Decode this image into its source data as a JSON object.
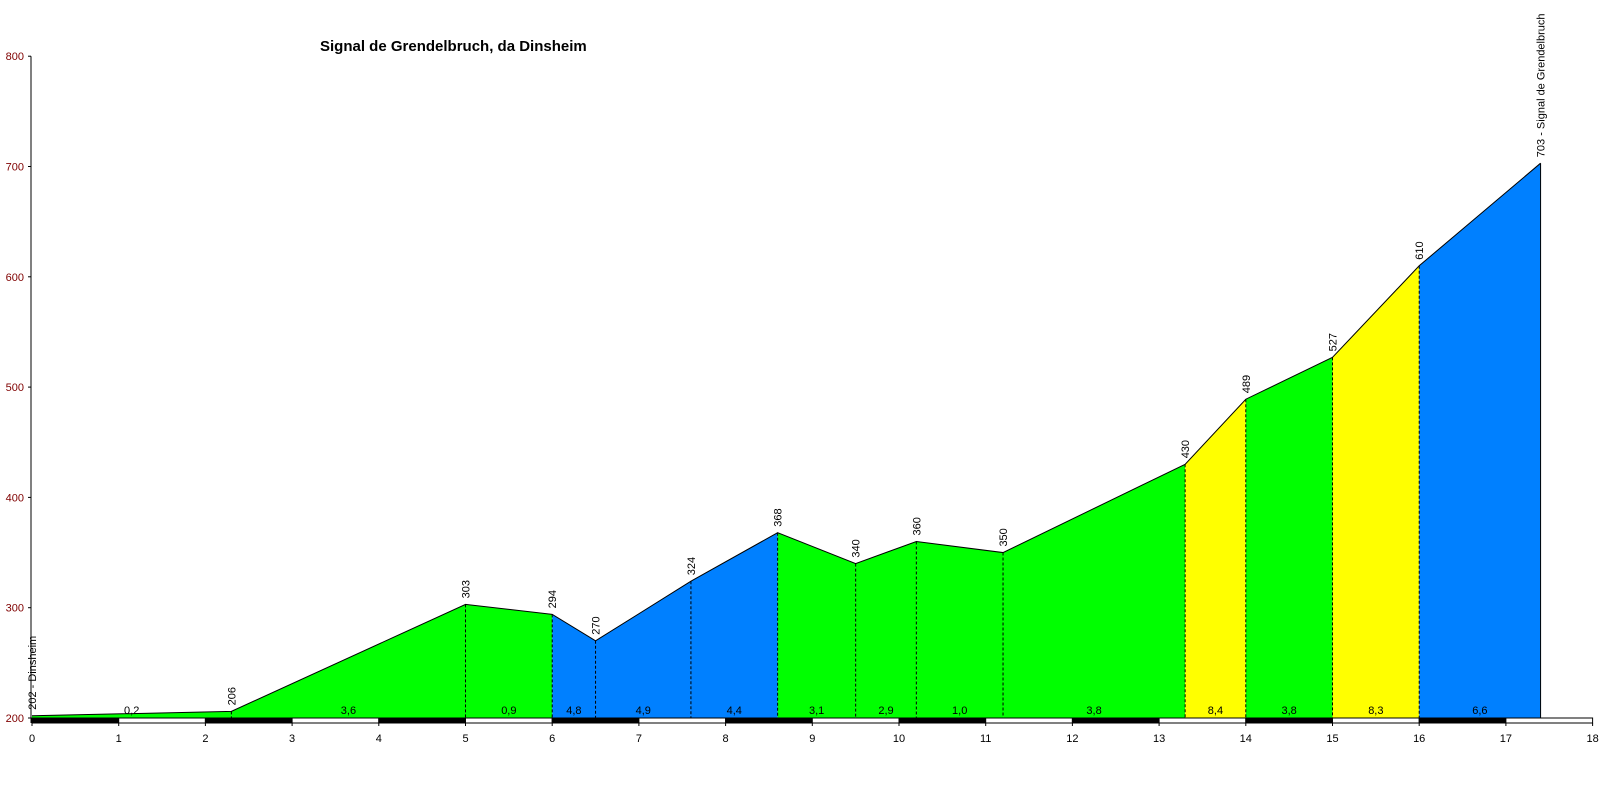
{
  "chart_data": {
    "type": "area",
    "title": "Signal de Grendelbruch, da Dinsheim",
    "xlabel": "",
    "ylabel": "",
    "xlim": [
      0,
      18
    ],
    "ylim": [
      200,
      800
    ],
    "x_ticks": [
      0,
      1,
      2,
      3,
      4,
      5,
      6,
      7,
      8,
      9,
      10,
      11,
      12,
      13,
      14,
      15,
      16,
      17,
      18
    ],
    "y_ticks": [
      200,
      300,
      400,
      500,
      600,
      700,
      800
    ],
    "points": [
      {
        "x": 0,
        "y": 202,
        "label": "202 - Dinsheim"
      },
      {
        "x": 2.3,
        "y": 206,
        "label": "206"
      },
      {
        "x": 5.0,
        "y": 303,
        "label": "303"
      },
      {
        "x": 6.0,
        "y": 294,
        "label": "294"
      },
      {
        "x": 6.5,
        "y": 270,
        "label": "270"
      },
      {
        "x": 7.6,
        "y": 324,
        "label": "324"
      },
      {
        "x": 8.6,
        "y": 368,
        "label": "368"
      },
      {
        "x": 9.5,
        "y": 340,
        "label": "340"
      },
      {
        "x": 10.2,
        "y": 360,
        "label": "360"
      },
      {
        "x": 11.2,
        "y": 350,
        "label": "350"
      },
      {
        "x": 13.3,
        "y": 430,
        "label": "430"
      },
      {
        "x": 14.0,
        "y": 489,
        "label": "489"
      },
      {
        "x": 15.0,
        "y": 527,
        "label": "527"
      },
      {
        "x": 16.0,
        "y": 610,
        "label": "610"
      },
      {
        "x": 17.4,
        "y": 703,
        "label": "703 - Signal de Grendelbruch"
      }
    ],
    "segments": [
      {
        "gradient": "0,2",
        "color": "#00ff00"
      },
      {
        "gradient": "3,6",
        "color": "#00ff00"
      },
      {
        "gradient": "0,9",
        "color": "#00ff00"
      },
      {
        "gradient": "4,8",
        "color": "#0080ff"
      },
      {
        "gradient": "4,9",
        "color": "#0080ff"
      },
      {
        "gradient": "4,4",
        "color": "#0080ff"
      },
      {
        "gradient": "3,1",
        "color": "#00ff00"
      },
      {
        "gradient": "2,9",
        "color": "#00ff00"
      },
      {
        "gradient": "1,0",
        "color": "#00ff00"
      },
      {
        "gradient": "3,8",
        "color": "#00ff00"
      },
      {
        "gradient": "8,4",
        "color": "#ffff00"
      },
      {
        "gradient": "3,8",
        "color": "#00ff00"
      },
      {
        "gradient": "8,3",
        "color": "#ffff00"
      },
      {
        "gradient": "6,6",
        "color": "#0080ff"
      }
    ],
    "grid": false,
    "legend": "none",
    "colors": {
      "y_axis_labels": "#800000",
      "x_axis_labels": "#000000",
      "outline": "#000000"
    }
  }
}
